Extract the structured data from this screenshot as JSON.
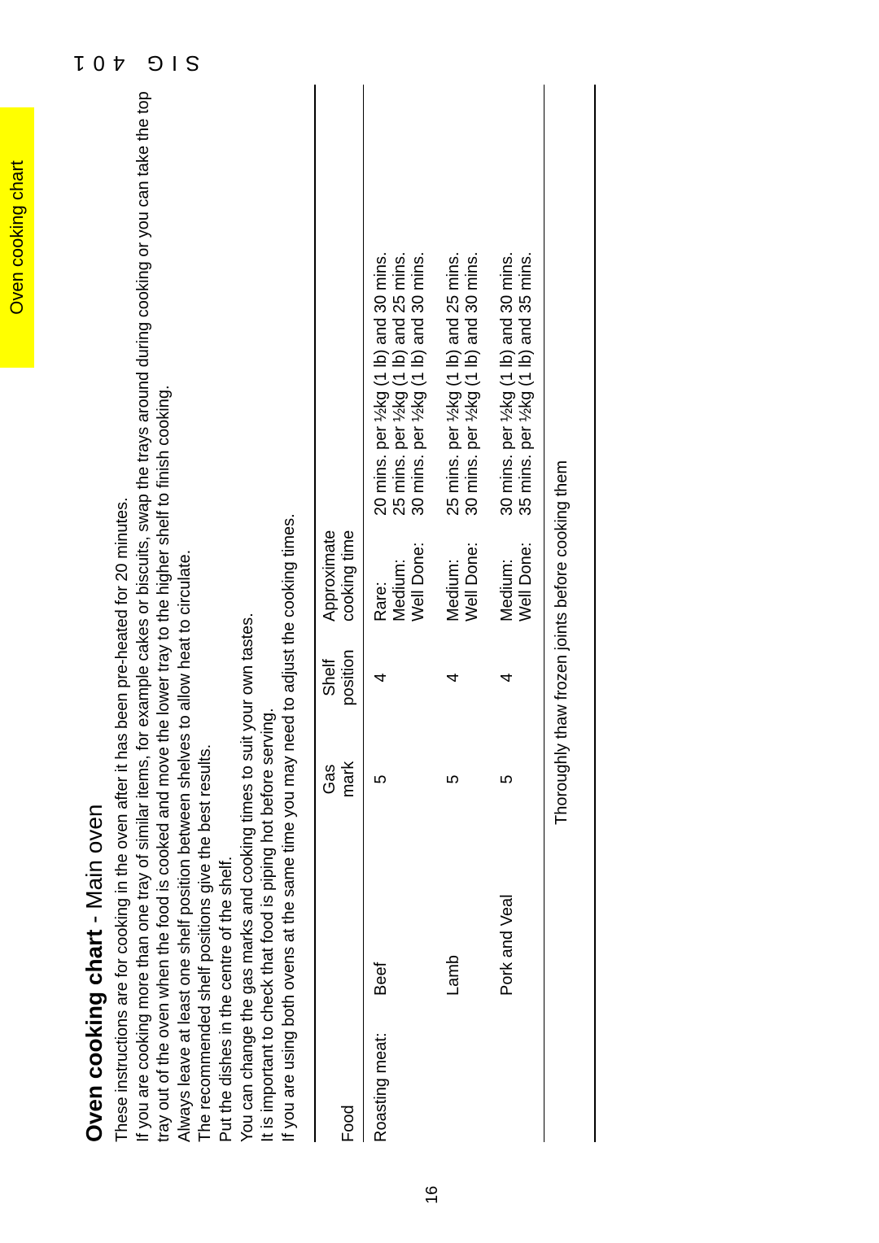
{
  "tab_label": "Oven cooking chart",
  "side_model": "SIG 401",
  "page_number": "16",
  "heading_main": "Oven cooking chart",
  "heading_sub": " - Main oven",
  "intro_lines": [
    "These instructions are for cooking in the oven after it has been pre-heated for 20 minutes.",
    "If you are cooking more than one tray of similar items, for example cakes or biscuits, swap the trays around during cooking or you can take the top tray out of the oven when the food is cooked and move the lower tray to the higher shelf to finish cooking.",
    "Always leave at least one shelf position between shelves to allow heat to circulate.",
    "The recommended shelf positions give the best results.",
    "Put the dishes in the centre of the shelf.",
    "You can change the gas marks and cooking times to suit your own tastes.",
    "It is important to check that food is piping hot before serving.",
    "If you are using both ovens at the same time you may need to adjust the cooking times."
  ],
  "columns": {
    "food": "Food",
    "gas1": "Gas",
    "gas2": "mark",
    "shelf1": "Shelf",
    "shelf2": "position",
    "time1": "Approximate",
    "time2": "cooking time"
  },
  "section_label": "Roasting meat:",
  "rows": [
    {
      "item": "Beef",
      "gas": "5",
      "shelf": "4",
      "lines": [
        {
          "label": "Rare:",
          "time": "20 mins. per ½kg (1 lb) and 30 mins."
        },
        {
          "label": "Medium:",
          "time": "25 mins. per ½kg (1 lb) and 25 mins."
        },
        {
          "label": "Well Done:",
          "time": "30 mins. per ½kg (1 lb) and 30 mins."
        }
      ]
    },
    {
      "item": "Lamb",
      "gas": "5",
      "shelf": "4",
      "lines": [
        {
          "label": "Medium:",
          "time": "25 mins. per ½kg (1 lb) and 25 mins."
        },
        {
          "label": "Well Done:",
          "time": "30 mins. per ½kg (1 lb) and 30 mins."
        }
      ]
    },
    {
      "item": "Pork and Veal",
      "gas": "5",
      "shelf": "4",
      "lines": [
        {
          "label": "Medium:",
          "time": "30 mins. per ½kg (1 lb) and 30 mins."
        },
        {
          "label": "Well Done:",
          "time": "35 mins. per ½kg (1 lb) and 35 mins."
        }
      ]
    }
  ],
  "footer_note": "Thoroughly thaw frozen joints before cooking them"
}
